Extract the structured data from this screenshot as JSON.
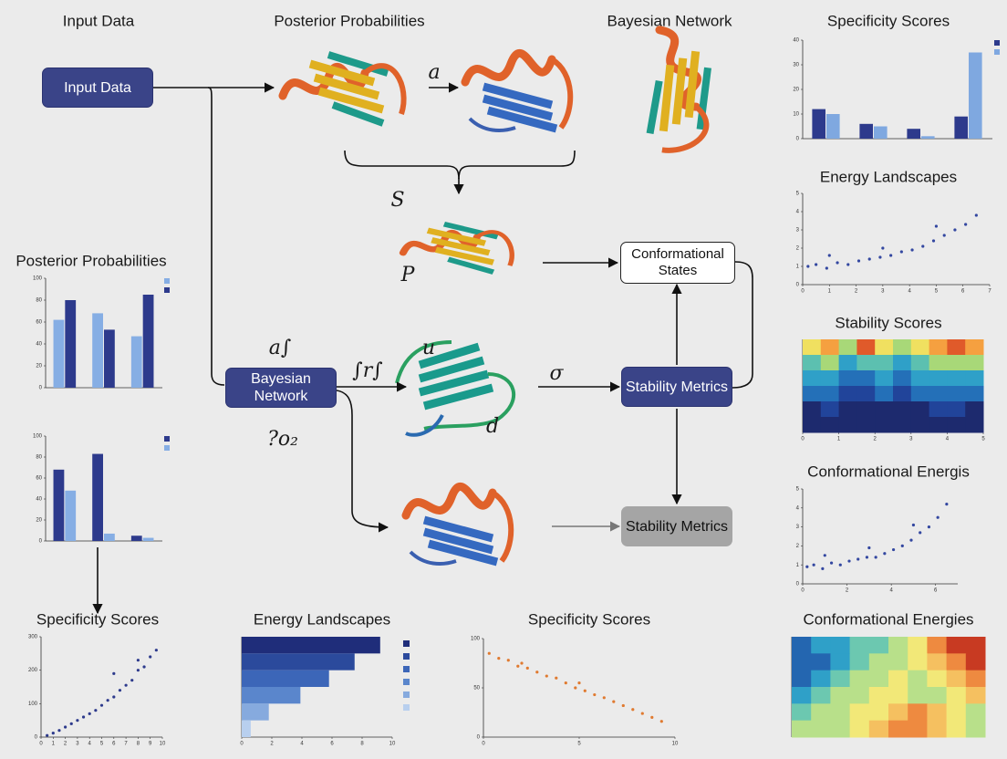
{
  "titles": [
    "Input Data",
    "Posterior Probabilities",
    "Bayesian Network",
    "Specificity Scores",
    "Energy Landscapes",
    "Stability Scores",
    "Conformational Energis",
    "Conformational Energies",
    "Posterior Probabilities",
    "Specificity Scores",
    "Energy Landscapes",
    "Specificity Scores"
  ],
  "nodes": [
    {
      "label": "Input Data"
    },
    {
      "label": "Bayesian Network"
    },
    {
      "label": "Conformational States"
    },
    {
      "label": "Stability Metrics"
    },
    {
      "label": "Stability Metrics"
    }
  ],
  "symbols": [
    "a",
    "a∫",
    "∫r∫",
    "u",
    "σ",
    "d",
    "?ο₂",
    "S",
    "P"
  ],
  "charts": [
    {
      "type": "bar",
      "ylim": [
        0,
        40
      ],
      "yticks": [
        0,
        10,
        20,
        30,
        40
      ],
      "series": [
        {
          "color": "#2d3a8c",
          "values": [
            12,
            6,
            4,
            9
          ]
        },
        {
          "color": "#7fa8e0",
          "values": [
            10,
            5,
            1,
            35
          ]
        }
      ]
    },
    {
      "type": "scatter",
      "color": "#3347a0",
      "xlim": [
        0,
        7
      ],
      "ylim": [
        0,
        5
      ],
      "xticks": [
        0,
        1,
        2,
        3,
        4,
        5,
        6,
        7
      ],
      "yticks": [
        0,
        1,
        2,
        3,
        4,
        5
      ],
      "x": [
        0.2,
        0.5,
        0.9,
        1.3,
        1.7,
        2.1,
        2.5,
        2.9,
        3.3,
        3.7,
        4.1,
        4.5,
        4.9,
        5.3,
        5.7,
        6.1,
        6.5,
        1.0,
        3.0,
        5.0
      ],
      "values": [
        1.0,
        1.1,
        0.9,
        1.2,
        1.1,
        1.3,
        1.4,
        1.5,
        1.6,
        1.8,
        1.9,
        2.1,
        2.4,
        2.7,
        3.0,
        3.3,
        3.8,
        1.6,
        2.0,
        3.2
      ]
    },
    {
      "type": "heatmap",
      "xlim": [
        0,
        5
      ],
      "xticks": [
        0,
        1,
        2,
        3,
        4,
        5
      ],
      "colors": [
        "#1d2a6e",
        "#21449a",
        "#2470b8",
        "#2fa0c8",
        "#5cc0b0",
        "#a8d878",
        "#f0e060",
        "#f5a040",
        "#e05a2a"
      ],
      "values": [
        [
          0.7,
          0.8,
          0.6,
          0.9,
          0.7,
          0.6,
          0.7,
          0.8,
          0.9,
          0.8
        ],
        [
          0.5,
          0.6,
          0.4,
          0.5,
          0.5,
          0.4,
          0.5,
          0.6,
          0.6,
          0.6
        ],
        [
          0.35,
          0.4,
          0.3,
          0.3,
          0.35,
          0.3,
          0.35,
          0.4,
          0.4,
          0.4
        ],
        [
          0.25,
          0.25,
          0.2,
          0.2,
          0.25,
          0.2,
          0.25,
          0.25,
          0.3,
          0.3
        ],
        [
          0.1,
          0.15,
          0.1,
          0.1,
          0.1,
          0.1,
          0.1,
          0.15,
          0.15,
          0.1
        ],
        [
          0.05,
          0.05,
          0.05,
          0.05,
          0.05,
          0.05,
          0.05,
          0.05,
          0.05,
          0.05
        ]
      ]
    },
    {
      "type": "scatter",
      "color": "#3347a0",
      "xlim": [
        0,
        7
      ],
      "ylim": [
        0,
        5
      ],
      "xticks": [
        0,
        2,
        4,
        6
      ],
      "yticks": [
        0,
        1,
        2,
        3,
        4,
        5
      ],
      "x": [
        0.2,
        0.5,
        0.9,
        1.3,
        1.7,
        2.1,
        2.5,
        2.9,
        3.3,
        3.7,
        4.1,
        4.5,
        4.9,
        5.3,
        5.7,
        6.1,
        6.5,
        1.0,
        3.0,
        5.0
      ],
      "values": [
        0.9,
        1.0,
        0.8,
        1.1,
        1.0,
        1.2,
        1.3,
        1.4,
        1.4,
        1.6,
        1.8,
        2.0,
        2.3,
        2.7,
        3.0,
        3.5,
        4.2,
        1.5,
        1.9,
        3.1
      ]
    },
    {
      "type": "heatmap",
      "colors": [
        "#1d3a8e",
        "#2466b0",
        "#2fa0c8",
        "#6cc8b0",
        "#b8e08a",
        "#f2e878",
        "#f5c060",
        "#ee8a40",
        "#c83a22"
      ],
      "values": [
        [
          0.2,
          0.25,
          0.3,
          0.35,
          0.4,
          0.5,
          0.6,
          0.8,
          0.9,
          0.95
        ],
        [
          0.15,
          0.2,
          0.3,
          0.4,
          0.5,
          0.55,
          0.6,
          0.7,
          0.85,
          0.9
        ],
        [
          0.2,
          0.3,
          0.4,
          0.5,
          0.55,
          0.6,
          0.55,
          0.6,
          0.7,
          0.8
        ],
        [
          0.3,
          0.4,
          0.5,
          0.55,
          0.6,
          0.6,
          0.5,
          0.55,
          0.6,
          0.7
        ],
        [
          0.4,
          0.5,
          0.55,
          0.6,
          0.65,
          0.75,
          0.8,
          0.7,
          0.6,
          0.55
        ],
        [
          0.45,
          0.5,
          0.55,
          0.6,
          0.7,
          0.8,
          0.8,
          0.75,
          0.6,
          0.5
        ]
      ]
    },
    {
      "type": "bar",
      "ylim": [
        0,
        100
      ],
      "yticks": [
        0,
        20,
        40,
        60,
        80,
        100
      ],
      "series": [
        {
          "color": "#86aee4",
          "values": [
            62,
            68,
            47
          ]
        },
        {
          "color": "#2d3a8c",
          "values": [
            80,
            53,
            85
          ]
        }
      ]
    },
    {
      "type": "bar",
      "ylim": [
        0,
        100
      ],
      "yticks": [
        0,
        20,
        40,
        60,
        80,
        100
      ],
      "series": [
        {
          "color": "#2d3a8c",
          "values": [
            68,
            83,
            5
          ]
        },
        {
          "color": "#86aee4",
          "values": [
            48,
            7,
            3
          ]
        }
      ]
    },
    {
      "type": "scatter",
      "color": "#2d3a8c",
      "xlim": [
        0,
        10
      ],
      "ylim": [
        0,
        300
      ],
      "xticks": [
        0,
        1,
        2,
        3,
        4,
        5,
        6,
        7,
        8,
        9,
        10
      ],
      "yticks": [
        0,
        100,
        200,
        300
      ],
      "x": [
        0.5,
        1,
        1.5,
        2,
        2.5,
        3,
        3.5,
        4,
        4.5,
        5,
        5.5,
        6,
        6.5,
        7,
        7.5,
        8,
        8.5,
        9,
        9.5,
        6,
        8
      ],
      "values": [
        5,
        12,
        20,
        30,
        40,
        50,
        60,
        70,
        80,
        95,
        110,
        120,
        140,
        155,
        170,
        200,
        210,
        240,
        260,
        190,
        230
      ]
    },
    {
      "type": "hbar",
      "xlim": [
        0,
        10
      ],
      "xticks": [
        0,
        2,
        4,
        6,
        8,
        10
      ],
      "colors": [
        "#1f2d7a",
        "#2b4a9c",
        "#3c66b8",
        "#5a86cc",
        "#86aade",
        "#b8cfee"
      ],
      "values": [
        9.2,
        7.5,
        5.8,
        3.9,
        1.8,
        0.6
      ]
    },
    {
      "type": "scatter",
      "color": "#e07a30",
      "xlim": [
        0,
        10
      ],
      "ylim": [
        0,
        100
      ],
      "xticks": [
        0,
        5,
        10
      ],
      "yticks": [
        0,
        50,
        100
      ],
      "x": [
        0.3,
        0.8,
        1.3,
        1.8,
        2.3,
        2.8,
        3.3,
        3.8,
        4.3,
        4.8,
        5.3,
        5.8,
        6.3,
        6.8,
        7.3,
        7.8,
        8.3,
        8.8,
        9.3,
        2,
        5
      ],
      "values": [
        85,
        80,
        78,
        72,
        70,
        66,
        62,
        60,
        55,
        50,
        47,
        43,
        40,
        36,
        32,
        28,
        24,
        20,
        16,
        75,
        55
      ]
    }
  ]
}
